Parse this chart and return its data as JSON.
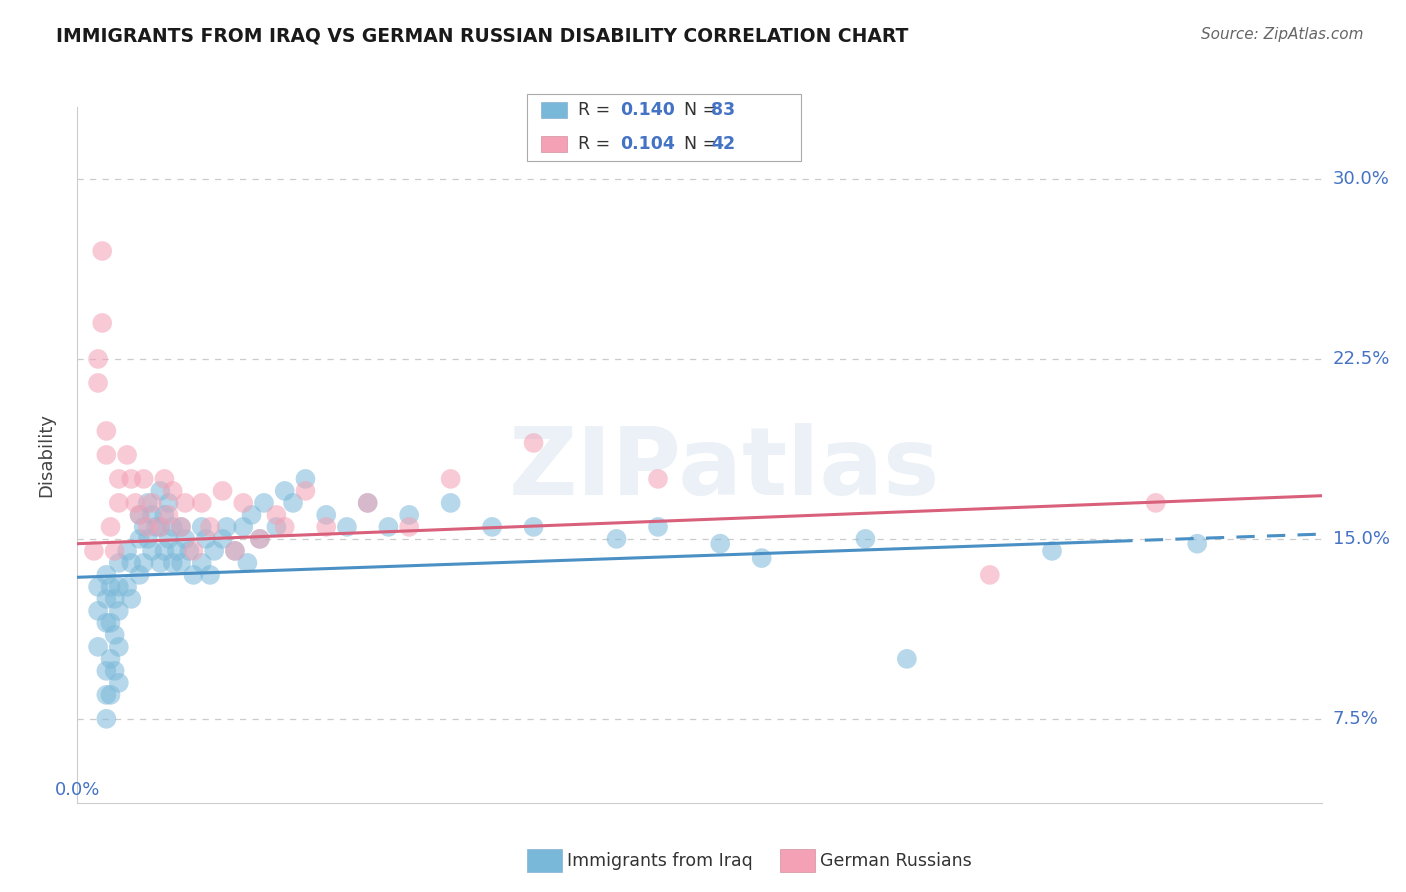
{
  "title": "IMMIGRANTS FROM IRAQ VS GERMAN RUSSIAN DISABILITY CORRELATION CHART",
  "source": "Source: ZipAtlas.com",
  "ylabel": "Disability",
  "yticks": [
    0.075,
    0.15,
    0.225,
    0.3
  ],
  "ytick_labels": [
    "7.5%",
    "15.0%",
    "22.5%",
    "30.0%"
  ],
  "xlim": [
    0.0,
    0.3
  ],
  "ylim": [
    0.04,
    0.33
  ],
  "blue_R": "0.140",
  "blue_N": "83",
  "pink_R": "0.104",
  "pink_N": "42",
  "blue_color": "#7ab8d9",
  "pink_color": "#f4a0b5",
  "blue_line_color": "#4a90c4",
  "pink_line_color": "#d9607a",
  "watermark": "ZIPatlas",
  "legend_label_blue": "Immigrants from Iraq",
  "legend_label_pink": "German Russians",
  "blue_points_x": [
    0.005,
    0.005,
    0.005,
    0.007,
    0.007,
    0.007,
    0.007,
    0.007,
    0.007,
    0.008,
    0.008,
    0.008,
    0.008,
    0.009,
    0.009,
    0.009,
    0.01,
    0.01,
    0.01,
    0.01,
    0.01,
    0.012,
    0.012,
    0.013,
    0.013,
    0.015,
    0.015,
    0.015,
    0.016,
    0.016,
    0.017,
    0.017,
    0.018,
    0.018,
    0.019,
    0.02,
    0.02,
    0.02,
    0.021,
    0.021,
    0.022,
    0.022,
    0.023,
    0.023,
    0.024,
    0.025,
    0.025,
    0.026,
    0.027,
    0.028,
    0.03,
    0.03,
    0.031,
    0.032,
    0.033,
    0.035,
    0.036,
    0.038,
    0.04,
    0.041,
    0.042,
    0.044,
    0.045,
    0.048,
    0.05,
    0.052,
    0.055,
    0.06,
    0.065,
    0.07,
    0.075,
    0.08,
    0.09,
    0.1,
    0.11,
    0.13,
    0.14,
    0.155,
    0.165,
    0.19,
    0.2,
    0.235,
    0.27
  ],
  "blue_points_y": [
    0.13,
    0.12,
    0.105,
    0.135,
    0.125,
    0.115,
    0.095,
    0.085,
    0.075,
    0.13,
    0.115,
    0.1,
    0.085,
    0.125,
    0.11,
    0.095,
    0.14,
    0.13,
    0.12,
    0.105,
    0.09,
    0.145,
    0.13,
    0.14,
    0.125,
    0.16,
    0.15,
    0.135,
    0.155,
    0.14,
    0.165,
    0.15,
    0.16,
    0.145,
    0.155,
    0.17,
    0.155,
    0.14,
    0.16,
    0.145,
    0.165,
    0.15,
    0.155,
    0.14,
    0.145,
    0.155,
    0.14,
    0.15,
    0.145,
    0.135,
    0.155,
    0.14,
    0.15,
    0.135,
    0.145,
    0.15,
    0.155,
    0.145,
    0.155,
    0.14,
    0.16,
    0.15,
    0.165,
    0.155,
    0.17,
    0.165,
    0.175,
    0.16,
    0.155,
    0.165,
    0.155,
    0.16,
    0.165,
    0.155,
    0.155,
    0.15,
    0.155,
    0.148,
    0.142,
    0.15,
    0.1,
    0.145,
    0.148
  ],
  "pink_points_x": [
    0.004,
    0.005,
    0.005,
    0.006,
    0.006,
    0.007,
    0.007,
    0.008,
    0.009,
    0.01,
    0.01,
    0.012,
    0.013,
    0.014,
    0.015,
    0.016,
    0.017,
    0.018,
    0.02,
    0.021,
    0.022,
    0.023,
    0.025,
    0.026,
    0.028,
    0.03,
    0.032,
    0.035,
    0.038,
    0.04,
    0.044,
    0.048,
    0.05,
    0.055,
    0.06,
    0.07,
    0.08,
    0.09,
    0.11,
    0.14,
    0.22,
    0.26
  ],
  "pink_points_y": [
    0.145,
    0.225,
    0.215,
    0.24,
    0.27,
    0.195,
    0.185,
    0.155,
    0.145,
    0.175,
    0.165,
    0.185,
    0.175,
    0.165,
    0.16,
    0.175,
    0.155,
    0.165,
    0.155,
    0.175,
    0.16,
    0.17,
    0.155,
    0.165,
    0.145,
    0.165,
    0.155,
    0.17,
    0.145,
    0.165,
    0.15,
    0.16,
    0.155,
    0.17,
    0.155,
    0.165,
    0.155,
    0.175,
    0.19,
    0.175,
    0.135,
    0.165
  ],
  "blue_trend_x": [
    0.0,
    0.25,
    0.3
  ],
  "blue_trend_y": [
    0.134,
    0.149,
    0.152
  ],
  "blue_trend_solid_end": 0.25,
  "pink_trend_x": [
    0.0,
    0.3
  ],
  "pink_trend_y": [
    0.148,
    0.168
  ],
  "grid_color": "#cccccc",
  "background_color": "#ffffff",
  "accent_color": "#4472c4"
}
